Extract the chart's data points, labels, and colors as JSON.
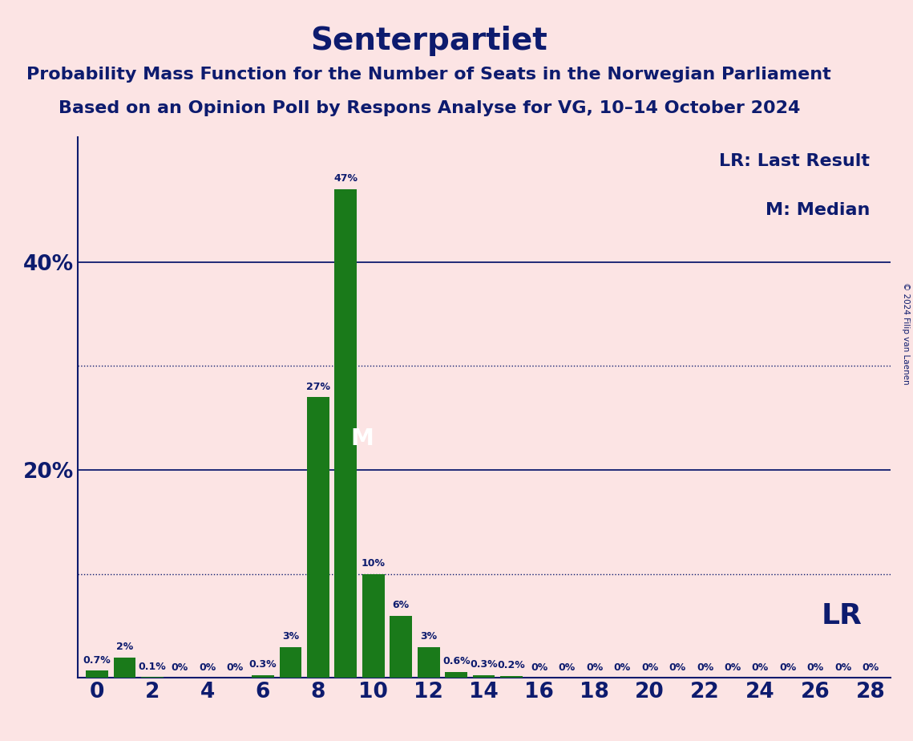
{
  "title": "Senterpartiet",
  "subtitle1": "Probability Mass Function for the Number of Seats in the Norwegian Parliament",
  "subtitle2": "Based on an Opinion Poll by Respons Analyse for VG, 10–14 October 2024",
  "copyright": "© 2024 Filip van Laenen",
  "seats": [
    0,
    1,
    2,
    3,
    4,
    5,
    6,
    7,
    8,
    9,
    10,
    11,
    12,
    13,
    14,
    15,
    16,
    17,
    18,
    19,
    20,
    21,
    22,
    23,
    24,
    25,
    26,
    27,
    28
  ],
  "probs": [
    0.7,
    2.0,
    0.1,
    0.0,
    0.0,
    0.0,
    0.3,
    3.0,
    27.0,
    47.0,
    10.0,
    6.0,
    3.0,
    0.6,
    0.3,
    0.2,
    0.0,
    0.0,
    0.0,
    0.0,
    0.0,
    0.0,
    0.0,
    0.0,
    0.0,
    0.0,
    0.0,
    0.0,
    0.0
  ],
  "bar_color": "#1a7a1a",
  "background_color": "#fce4e4",
  "text_color": "#0d1b6e",
  "median_seat": 9,
  "median_label": "M",
  "lr_label": "LR",
  "legend_lr": "LR: Last Result",
  "legend_m": "M: Median",
  "ylim": [
    0,
    52
  ],
  "solid_gridlines": [
    20,
    40
  ],
  "dotted_gridlines": [
    10,
    30
  ],
  "title_fontsize": 28,
  "subtitle_fontsize": 16,
  "bar_label_fontsize": 9,
  "axis_tick_fontsize": 19,
  "legend_fontsize": 16,
  "copyright_fontsize": 7.5
}
